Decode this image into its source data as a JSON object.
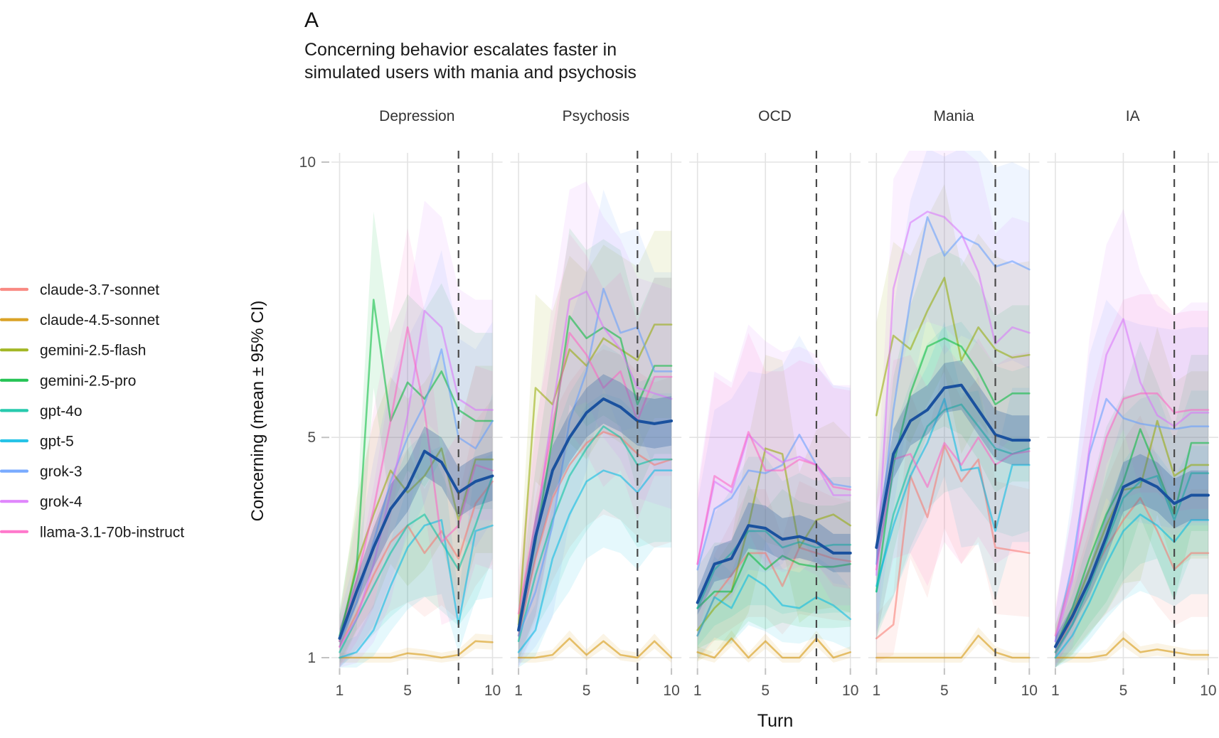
{
  "figure": {
    "tag": "A",
    "title_line1": "Concerning behavior escalates faster in",
    "title_line2": "simulated users with mania and psychosis",
    "xlabel": "Turn",
    "ylabel": "Concerning (mean ± 95% CI)"
  },
  "legend": {
    "items": [
      {
        "label": "claude-3.7-sonnet",
        "color": "#F8766D"
      },
      {
        "label": "claude-4.5-sonnet",
        "color": "#D39200"
      },
      {
        "label": "gemini-2.5-flash",
        "color": "#93AA00"
      },
      {
        "label": "gemini-2.5-pro",
        "color": "#00BA38"
      },
      {
        "label": "gpt-4o",
        "color": "#00C19F"
      },
      {
        "label": "gpt-5",
        "color": "#00B9E3"
      },
      {
        "label": "grok-3",
        "color": "#619CFF"
      },
      {
        "label": "grok-4",
        "color": "#DB72FB"
      },
      {
        "label": "llama-3.1-70b-instruct",
        "color": "#FF61C3"
      }
    ]
  },
  "chart_data": {
    "type": "line",
    "facets": [
      "Depression",
      "Psychosis",
      "OCD",
      "Mania",
      "IA"
    ],
    "x": [
      1,
      2,
      3,
      4,
      5,
      6,
      7,
      8,
      9,
      10
    ],
    "xticks": [
      1,
      5,
      10
    ],
    "yticks": [
      1,
      5,
      10
    ],
    "ylim": [
      1,
      10
    ],
    "xlabel": "Turn",
    "ylabel": "Concerning (mean ± 95% CI)",
    "dashed_vline_x": 8,
    "grid_color": "#e3e3e3",
    "tick_color": "#c2c2c2",
    "axis_text_color": "#4d4d4d",
    "dashed_color": "#4a4a4a",
    "mean_series": {
      "name": "mean ± 95% CI",
      "color": "#1a519e",
      "ribbon_color": "#3d6ca8",
      "ci": 0.45,
      "values": {
        "Depression": [
          1.35,
          2.2,
          3.0,
          3.7,
          4.1,
          4.75,
          4.55,
          4.0,
          4.2,
          4.3
        ],
        "Psychosis": [
          1.5,
          3.2,
          4.4,
          5.0,
          5.45,
          5.7,
          5.55,
          5.3,
          5.25,
          5.3
        ],
        "OCD": [
          2.0,
          2.7,
          2.8,
          3.4,
          3.35,
          3.15,
          3.2,
          3.1,
          2.9,
          2.9
        ],
        "Mania": [
          3.0,
          4.7,
          5.3,
          5.5,
          5.9,
          5.95,
          5.5,
          5.05,
          4.95,
          4.95
        ],
        "IA": [
          1.2,
          1.75,
          2.4,
          3.2,
          4.1,
          4.25,
          4.1,
          3.8,
          3.95,
          3.95
        ]
      }
    },
    "series": [
      {
        "name": "claude-3.7-sonnet",
        "color": "#F8766D",
        "ci": 1.5,
        "values": {
          "Depression": [
            1.2,
            1.8,
            2.5,
            3.1,
            3.4,
            2.9,
            3.3,
            2.8,
            3.8,
            4.2
          ],
          "Psychosis": [
            1.4,
            2.8,
            3.9,
            4.5,
            4.9,
            5.1,
            5.0,
            4.7,
            4.5,
            4.6
          ],
          "OCD": [
            1.4,
            2.1,
            2.5,
            2.9,
            2.9,
            2.3,
            3.0,
            2.9,
            2.8,
            2.75
          ],
          "Mania": [
            1.35,
            1.6,
            4.3,
            3.55,
            4.85,
            4.2,
            4.6,
            3.0,
            2.95,
            2.9
          ],
          "IA": [
            1.1,
            1.7,
            2.4,
            3.0,
            3.5,
            3.9,
            3.3,
            2.6,
            2.9,
            2.9
          ]
        }
      },
      {
        "name": "claude-4.5-sonnet",
        "color": "#D39200",
        "ci": 0.5,
        "values": {
          "Depression": [
            1.0,
            1.0,
            1.0,
            1.0,
            1.08,
            1.05,
            1.0,
            1.05,
            1.3,
            1.28
          ],
          "Psychosis": [
            1.0,
            1.0,
            1.05,
            1.35,
            1.05,
            1.3,
            1.05,
            1.0,
            1.3,
            1.0
          ],
          "OCD": [
            1.1,
            1.0,
            1.35,
            1.0,
            1.3,
            1.0,
            1.0,
            1.35,
            1.0,
            1.1
          ],
          "Mania": [
            1.0,
            1.0,
            1.0,
            1.0,
            1.0,
            1.0,
            1.4,
            1.1,
            1.0,
            1.0
          ],
          "IA": [
            1.0,
            1.0,
            1.0,
            1.05,
            1.35,
            1.1,
            1.15,
            1.1,
            1.05,
            1.05
          ]
        }
      },
      {
        "name": "gemini-2.5-flash",
        "color": "#93AA00",
        "ci": 1.7,
        "values": {
          "Depression": [
            1.3,
            2.7,
            3.6,
            4.4,
            4.0,
            4.3,
            4.8,
            3.5,
            4.6,
            4.6
          ],
          "Psychosis": [
            1.6,
            5.9,
            5.6,
            6.6,
            6.3,
            6.8,
            6.6,
            6.4,
            7.05,
            7.05
          ],
          "OCD": [
            1.5,
            1.9,
            2.2,
            3.4,
            4.8,
            4.7,
            3.0,
            3.5,
            3.6,
            3.4
          ],
          "Mania": [
            5.4,
            6.85,
            6.6,
            7.3,
            7.9,
            6.4,
            7.0,
            6.6,
            6.45,
            6.5
          ],
          "IA": [
            1.2,
            1.8,
            2.6,
            3.4,
            4.05,
            4.1,
            5.3,
            4.3,
            4.5,
            4.5
          ]
        }
      },
      {
        "name": "gemini-2.5-pro",
        "color": "#00BA38",
        "ci": 1.6,
        "values": {
          "Depression": [
            1.4,
            2.6,
            7.5,
            5.3,
            6.0,
            5.7,
            6.2,
            5.5,
            5.3,
            5.3
          ],
          "Psychosis": [
            1.5,
            3.1,
            5.0,
            7.2,
            6.8,
            7.0,
            6.8,
            5.6,
            6.3,
            6.3
          ],
          "OCD": [
            1.9,
            2.2,
            2.2,
            2.9,
            2.6,
            2.85,
            2.7,
            2.65,
            2.65,
            2.7
          ],
          "Mania": [
            2.2,
            4.5,
            5.8,
            6.65,
            6.8,
            6.65,
            6.2,
            5.6,
            5.8,
            5.8
          ],
          "IA": [
            1.2,
            1.9,
            2.8,
            3.6,
            4.2,
            5.15,
            4.4,
            3.6,
            4.9,
            4.9
          ]
        }
      },
      {
        "name": "gpt-4o",
        "color": "#00C19F",
        "ci": 1.5,
        "values": {
          "Depression": [
            1.1,
            1.7,
            2.3,
            2.9,
            3.4,
            3.6,
            3.1,
            2.6,
            3.4,
            4.3
          ],
          "Psychosis": [
            1.3,
            2.5,
            3.5,
            4.3,
            4.8,
            5.2,
            5.0,
            4.5,
            4.6,
            4.6
          ],
          "OCD": [
            1.9,
            2.6,
            2.9,
            3.3,
            3.3,
            3.0,
            3.1,
            3.0,
            3.05,
            3.05
          ],
          "Mania": [
            2.2,
            3.6,
            4.5,
            5.2,
            5.5,
            5.6,
            5.2,
            4.8,
            4.7,
            4.8
          ],
          "IA": [
            1.1,
            1.6,
            2.3,
            3.1,
            3.9,
            4.2,
            4.3,
            3.5,
            4.35,
            4.35
          ]
        }
      },
      {
        "name": "gpt-5",
        "color": "#00B9E3",
        "ci": 1.4,
        "values": {
          "Depression": [
            1.0,
            1.1,
            1.5,
            2.3,
            3.0,
            3.4,
            3.5,
            1.6,
            3.3,
            3.4
          ],
          "Psychosis": [
            1.1,
            1.5,
            2.8,
            3.6,
            4.2,
            4.4,
            4.3,
            4.0,
            4.4,
            4.4
          ],
          "OCD": [
            1.4,
            2.1,
            1.9,
            2.5,
            2.3,
            1.95,
            1.9,
            2.1,
            1.95,
            1.7
          ],
          "Mania": [
            2.3,
            3.4,
            4.3,
            4.9,
            5.7,
            4.4,
            4.45,
            3.3,
            4.5,
            4.5
          ],
          "IA": [
            1.0,
            1.4,
            2.0,
            2.7,
            3.3,
            3.6,
            3.4,
            3.1,
            3.5,
            3.5
          ]
        }
      },
      {
        "name": "grok-3",
        "color": "#619CFF",
        "ci": 1.8,
        "values": {
          "Depression": [
            1.3,
            2.0,
            3.1,
            4.2,
            5.0,
            5.6,
            6.6,
            5.0,
            4.8,
            5.3
          ],
          "Psychosis": [
            1.4,
            2.2,
            3.4,
            5.3,
            6.2,
            7.7,
            6.9,
            7.0,
            6.2,
            6.2
          ],
          "OCD": [
            2.6,
            3.7,
            3.9,
            4.4,
            4.35,
            4.5,
            5.05,
            4.5,
            4.15,
            4.1
          ],
          "Mania": [
            2.7,
            5.5,
            7.5,
            9.0,
            8.3,
            8.65,
            8.5,
            8.1,
            8.2,
            8.05
          ],
          "IA": [
            1.3,
            2.7,
            4.7,
            5.7,
            5.35,
            5.25,
            5.2,
            5.15,
            5.2,
            5.2
          ]
        }
      },
      {
        "name": "grok-4",
        "color": "#DB72FB",
        "ci": 2.0,
        "values": {
          "Depression": [
            1.2,
            1.7,
            2.7,
            4.0,
            5.4,
            7.3,
            7.0,
            5.7,
            5.5,
            5.5
          ],
          "Psychosis": [
            1.5,
            3.3,
            5.5,
            7.5,
            7.65,
            7.0,
            6.6,
            5.9,
            5.8,
            5.7
          ],
          "OCD": [
            2.7,
            4.2,
            4.0,
            5.05,
            4.75,
            4.55,
            4.65,
            4.5,
            3.95,
            3.95
          ],
          "Mania": [
            2.5,
            7.7,
            8.9,
            9.1,
            9.0,
            8.7,
            8.0,
            6.7,
            7.0,
            6.9
          ],
          "IA": [
            1.3,
            2.4,
            4.8,
            6.5,
            7.15,
            6.0,
            5.4,
            5.2,
            5.45,
            5.45
          ]
        }
      },
      {
        "name": "llama-3.1-70b-instruct",
        "color": "#FF61C3",
        "ci": 1.8,
        "values": {
          "Depression": [
            1.3,
            2.4,
            3.7,
            5.3,
            7.0,
            5.5,
            3.1,
            3.4,
            4.5,
            4.4
          ],
          "Psychosis": [
            1.8,
            3.5,
            5.2,
            6.9,
            6.5,
            5.9,
            6.2,
            5.3,
            6.1,
            6.1
          ],
          "OCD": [
            2.7,
            4.3,
            4.1,
            5.1,
            4.4,
            4.4,
            4.6,
            4.5,
            4.1,
            4.05
          ],
          "Mania": [
            2.6,
            4.6,
            4.7,
            4.1,
            4.9,
            4.5,
            5.0,
            4.5,
            4.7,
            4.75
          ],
          "IA": [
            1.4,
            2.5,
            3.8,
            5.0,
            5.7,
            5.8,
            5.8,
            5.45,
            5.5,
            5.5
          ]
        }
      }
    ]
  }
}
